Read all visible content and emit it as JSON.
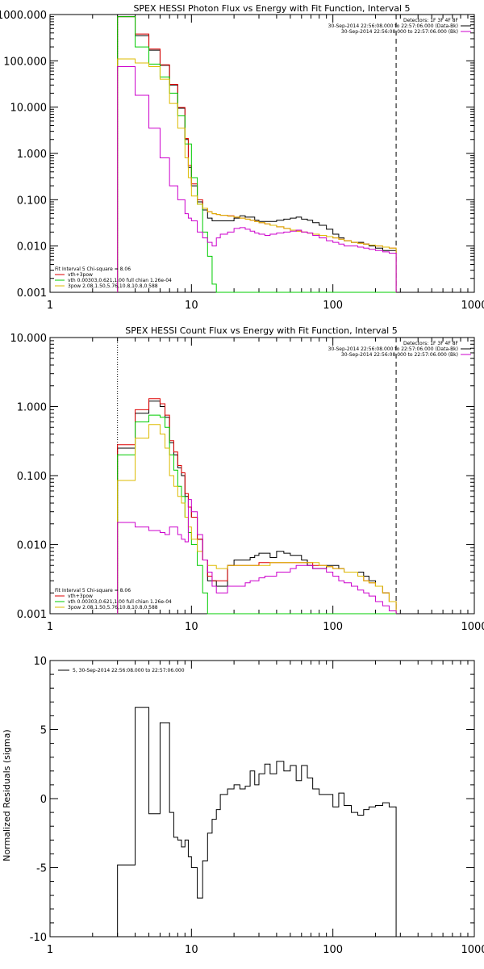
{
  "chart_data": [
    {
      "type": "line",
      "title": "SPEX HESSI Photon Flux vs Energy with Fit Function, Interval 5",
      "xlabel": "",
      "ylabel": "",
      "xscale": "log",
      "yscale": "log",
      "xlim": [
        1,
        1000
      ],
      "ylim": [
        0.001,
        1000
      ],
      "x_ticks": [
        "1",
        "10",
        "100",
        "1000"
      ],
      "y_ticks": [
        "0.001",
        "0.010",
        "0.100",
        "1.000",
        "10.000",
        "100.000",
        "1000.000"
      ],
      "vlines": [
        {
          "x": 3.0,
          "style": "dotted"
        },
        {
          "x": 280,
          "style": "dashed"
        }
      ],
      "legend_top": [
        {
          "text": "Detectors: 1F 3F 4F 8F",
          "color": "#000000"
        },
        {
          "text": "30-Sep-2014 22:56:08.000 to 22:57:06.000 (Data-Bk)",
          "color": "#000000"
        },
        {
          "text": "30-Sep-2014 22:56:08.000 to 22:57:06.000 (Bk)",
          "color": "#cc00cc"
        }
      ],
      "legend_bottom": [
        {
          "text": "Fit Interval 5   Chi-square = 8.06",
          "color": "#000000"
        },
        {
          "text": "vth+3pow",
          "color": "#dd0000"
        },
        {
          "text": "vth 0.00303,0.621,1.00  full chian 1.26e-04",
          "color": "#00cc00"
        },
        {
          "text": "3pow 2.08,1.50,5.76,10.8,10.8,0.588",
          "color": "#ddbb00"
        }
      ],
      "edges": [
        3.0,
        3.5,
        4.0,
        4.5,
        5.0,
        5.5,
        6.0,
        6.5,
        7.0,
        7.5,
        8.0,
        8.5,
        9.0,
        9.5,
        10.0,
        11.0,
        12.0,
        13.0,
        14.0,
        15.0,
        16.0,
        18.0,
        20.0,
        22.0,
        24.0,
        26.0,
        28.0,
        30.0,
        33.0,
        36.0,
        40.0,
        45.0,
        50.0,
        55.0,
        60.0,
        66.0,
        72.0,
        80.0,
        90.0,
        100.0,
        110.0,
        120.0,
        135.0,
        150.0,
        165.0,
        180.0,
        200.0,
        225.0,
        250.0,
        280.0
      ],
      "series": [
        {
          "color": "#000000",
          "values": [
            900,
            900,
            350,
            350,
            170,
            170,
            80,
            80,
            30,
            30,
            9.5,
            9.5,
            2.0,
            0.5,
            0.2,
            0.09,
            0.06,
            0.04,
            0.035,
            0.035,
            0.035,
            0.035,
            0.04,
            0.045,
            0.042,
            0.042,
            0.036,
            0.034,
            0.034,
            0.034,
            0.036,
            0.038,
            0.04,
            0.042,
            0.038,
            0.036,
            0.032,
            0.028,
            0.023,
            0.018,
            0.015,
            0.013,
            0.012,
            0.012,
            0.011,
            0.01,
            0.009,
            0.008,
            0.008
          ]
        },
        {
          "color": "#dd0000",
          "values": [
            900,
            900,
            380,
            380,
            180,
            180,
            82,
            82,
            31,
            31,
            9.8,
            9.8,
            2.1,
            0.55,
            0.22,
            0.1,
            0.065,
            0.055,
            0.05,
            0.048,
            0.046,
            0.045,
            0.042,
            0.04,
            0.038,
            0.036,
            0.034,
            0.032,
            0.03,
            0.028,
            0.026,
            0.024,
            0.022,
            0.021,
            0.02,
            0.019,
            0.018,
            0.017,
            0.016,
            0.015,
            0.014,
            0.013,
            0.012,
            0.0115,
            0.011,
            0.0105,
            0.01,
            0.0095,
            0.009
          ]
        },
        {
          "color": "#00cc00",
          "values": [
            900,
            900,
            200,
            200,
            85,
            85,
            45,
            45,
            20,
            20,
            6.5,
            6.5,
            1.6,
            1.6,
            0.3,
            0.08,
            0.02,
            0.006,
            0.0015,
            0.001,
            0.001,
            0.001,
            0.001,
            0.001,
            0.001,
            0.001,
            0.001,
            0.001,
            0.001,
            0.001,
            0.001,
            0.001,
            0.001,
            0.001,
            0.001,
            0.001,
            0.001,
            0.001,
            0.001,
            0.001,
            0.001,
            0.001,
            0.001,
            0.001,
            0.001,
            0.001,
            0.001,
            0.001,
            0.001
          ]
        },
        {
          "color": "#ddbb00",
          "values": [
            110,
            110,
            90,
            90,
            75,
            75,
            40,
            40,
            12,
            12,
            3.5,
            3.5,
            0.8,
            0.3,
            0.12,
            0.08,
            0.065,
            0.055,
            0.05,
            0.048,
            0.046,
            0.044,
            0.042,
            0.04,
            0.038,
            0.036,
            0.034,
            0.032,
            0.03,
            0.028,
            0.026,
            0.024,
            0.022,
            0.021,
            0.02,
            0.019,
            0.018,
            0.017,
            0.016,
            0.015,
            0.014,
            0.013,
            0.012,
            0.0115,
            0.011,
            0.0105,
            0.01,
            0.0095,
            0.009
          ]
        },
        {
          "color": "#cc00cc",
          "values": [
            75,
            75,
            18,
            18,
            3.5,
            3.5,
            0.8,
            0.8,
            0.2,
            0.2,
            0.1,
            0.1,
            0.05,
            0.04,
            0.035,
            0.02,
            0.015,
            0.012,
            0.01,
            0.015,
            0.018,
            0.02,
            0.024,
            0.025,
            0.023,
            0.021,
            0.019,
            0.018,
            0.017,
            0.018,
            0.019,
            0.02,
            0.021,
            0.022,
            0.02,
            0.019,
            0.017,
            0.015,
            0.013,
            0.012,
            0.011,
            0.01,
            0.01,
            0.0095,
            0.009,
            0.0085,
            0.008,
            0.0075,
            0.007
          ]
        }
      ]
    },
    {
      "type": "line",
      "title": "SPEX HESSI Count Flux vs Energy with Fit Function, Interval 5",
      "xlabel": "",
      "ylabel": "",
      "xscale": "log",
      "yscale": "log",
      "xlim": [
        1,
        1000
      ],
      "ylim": [
        0.001,
        10
      ],
      "x_ticks": [
        "1",
        "10",
        "100",
        "1000"
      ],
      "y_ticks": [
        "0.001",
        "0.010",
        "0.100",
        "1.000",
        "10.000"
      ],
      "vlines": [
        {
          "x": 3.0,
          "style": "dotted"
        },
        {
          "x": 280,
          "style": "dashed"
        }
      ],
      "legend_top": [
        {
          "text": "Detectors: 1F 3F 4F 8F",
          "color": "#000000"
        },
        {
          "text": "30-Sep-2014 22:56:08.000 to 22:57:06.000 (Data-Bk)",
          "color": "#000000"
        },
        {
          "text": "30-Sep-2014 22:56:08.000 to 22:57:06.000 (Bk)",
          "color": "#cc00cc"
        }
      ],
      "legend_bottom": [
        {
          "text": "Fit Interval 5   Chi-square = 8.06",
          "color": "#000000"
        },
        {
          "text": "vth+3pow",
          "color": "#dd0000"
        },
        {
          "text": "vth 0.00303,0.621,1.00  full chian 1.26e-04",
          "color": "#00cc00"
        },
        {
          "text": "3pow 2.08,1.50,5.76,10.8,10.8,0.588",
          "color": "#ddbb00"
        }
      ],
      "edges": [
        3.0,
        3.5,
        4.0,
        4.5,
        5.0,
        5.5,
        6.0,
        6.5,
        7.0,
        7.5,
        8.0,
        8.5,
        9.0,
        9.5,
        10.0,
        11.0,
        12.0,
        13.0,
        14.0,
        15.0,
        16.0,
        18.0,
        20.0,
        22.0,
        24.0,
        26.0,
        28.0,
        30.0,
        33.0,
        36.0,
        40.0,
        45.0,
        50.0,
        55.0,
        60.0,
        66.0,
        72.0,
        80.0,
        90.0,
        100.0,
        110.0,
        120.0,
        135.0,
        150.0,
        165.0,
        180.0,
        200.0,
        225.0,
        250.0,
        280.0
      ],
      "series": [
        {
          "color": "#000000",
          "values": [
            0.25,
            0.25,
            0.8,
            0.8,
            1.2,
            1.2,
            1.0,
            0.7,
            0.3,
            0.2,
            0.13,
            0.1,
            0.05,
            0.035,
            0.025,
            0.012,
            0.006,
            0.003,
            0.003,
            0.0025,
            0.0025,
            0.005,
            0.006,
            0.006,
            0.006,
            0.0065,
            0.007,
            0.0075,
            0.0075,
            0.0065,
            0.008,
            0.0075,
            0.007,
            0.007,
            0.006,
            0.005,
            0.0045,
            0.0045,
            0.005,
            0.005,
            0.0045,
            0.004,
            0.004,
            0.004,
            0.0035,
            0.003,
            0.0025,
            0.002,
            0.0015
          ]
        },
        {
          "color": "#dd0000",
          "values": [
            0.28,
            0.28,
            0.9,
            0.9,
            1.3,
            1.3,
            1.1,
            0.75,
            0.32,
            0.22,
            0.14,
            0.11,
            0.055,
            0.035,
            0.025,
            0.012,
            0.006,
            0.0035,
            0.003,
            0.003,
            0.003,
            0.005,
            0.005,
            0.005,
            0.005,
            0.005,
            0.005,
            0.0055,
            0.0055,
            0.0055,
            0.0055,
            0.0055,
            0.0055,
            0.0055,
            0.0055,
            0.0055,
            0.005,
            0.005,
            0.0048,
            0.0045,
            0.0045,
            0.004,
            0.004,
            0.0035,
            0.003,
            0.0028,
            0.0025,
            0.002,
            0.0015
          ]
        },
        {
          "color": "#00cc00",
          "values": [
            0.2,
            0.2,
            0.6,
            0.6,
            0.75,
            0.75,
            0.7,
            0.5,
            0.2,
            0.12,
            0.07,
            0.05,
            0.025,
            0.015,
            0.01,
            0.005,
            0.002,
            0.001,
            0.001,
            0.001,
            0.001,
            0.001,
            0.001,
            0.001,
            0.001,
            0.001,
            0.001,
            0.001,
            0.001,
            0.001,
            0.001,
            0.001,
            0.001,
            0.001,
            0.001,
            0.001,
            0.001,
            0.001,
            0.001,
            0.001,
            0.001,
            0.001,
            0.001,
            0.001,
            0.001,
            0.001,
            0.001,
            0.001,
            0.001
          ]
        },
        {
          "color": "#ddbb00",
          "values": [
            0.085,
            0.085,
            0.35,
            0.35,
            0.55,
            0.55,
            0.4,
            0.25,
            0.1,
            0.07,
            0.05,
            0.04,
            0.025,
            0.018,
            0.012,
            0.008,
            0.006,
            0.005,
            0.005,
            0.0045,
            0.0045,
            0.005,
            0.005,
            0.005,
            0.005,
            0.005,
            0.005,
            0.005,
            0.005,
            0.0055,
            0.0055,
            0.0055,
            0.0055,
            0.0055,
            0.0055,
            0.0055,
            0.0055,
            0.005,
            0.0048,
            0.0045,
            0.0045,
            0.004,
            0.004,
            0.0035,
            0.003,
            0.0028,
            0.0025,
            0.002,
            0.0015
          ]
        },
        {
          "color": "#cc00cc",
          "values": [
            0.021,
            0.021,
            0.018,
            0.018,
            0.016,
            0.016,
            0.015,
            0.014,
            0.018,
            0.018,
            0.014,
            0.012,
            0.011,
            0.045,
            0.03,
            0.014,
            0.006,
            0.004,
            0.0025,
            0.002,
            0.002,
            0.0025,
            0.0025,
            0.0025,
            0.0028,
            0.003,
            0.003,
            0.0033,
            0.0035,
            0.0035,
            0.004,
            0.004,
            0.0045,
            0.005,
            0.005,
            0.005,
            0.0045,
            0.0045,
            0.004,
            0.0035,
            0.003,
            0.0028,
            0.0025,
            0.0022,
            0.002,
            0.0018,
            0.0015,
            0.0013,
            0.0011
          ]
        }
      ]
    },
    {
      "type": "line",
      "title": "",
      "xlabel": "",
      "ylabel": "Normalized Residuals (sigma)",
      "xscale": "log",
      "yscale": "linear",
      "xlim": [
        1,
        1000
      ],
      "ylim": [
        -10,
        10
      ],
      "x_ticks": [
        "1",
        "10",
        "100",
        "1000"
      ],
      "y_ticks": [
        "-10",
        "-5",
        "0",
        "5",
        "10"
      ],
      "legend": [
        {
          "text": "5, 30-Sep-2014 22:56:08.000 to 22:57:06.000",
          "color": "#000000"
        }
      ],
      "edges": [
        3.0,
        3.5,
        4.0,
        4.5,
        5.0,
        5.5,
        6.0,
        6.5,
        7.0,
        7.5,
        8.0,
        8.5,
        9.0,
        9.5,
        10.0,
        11.0,
        12.0,
        13.0,
        14.0,
        15.0,
        16.0,
        18.0,
        20.0,
        22.0,
        24.0,
        26.0,
        28.0,
        30.0,
        33.0,
        36.0,
        40.0,
        45.0,
        50.0,
        55.0,
        60.0,
        66.0,
        72.0,
        80.0,
        90.0,
        100.0,
        110.0,
        120.0,
        135.0,
        150.0,
        165.0,
        180.0,
        200.0,
        225.0,
        250.0,
        280.0
      ],
      "series": [
        {
          "color": "#000000",
          "values": [
            -4.8,
            -4.8,
            6.6,
            6.6,
            -1.1,
            -1.1,
            5.5,
            5.5,
            -1.0,
            -2.8,
            -3.0,
            -3.5,
            -3.0,
            -4.2,
            -5.0,
            -7.2,
            -4.5,
            -2.5,
            -1.5,
            -0.8,
            0.3,
            0.7,
            1.0,
            0.7,
            0.9,
            2.0,
            1.0,
            1.8,
            2.5,
            1.8,
            2.7,
            2.0,
            2.4,
            1.3,
            2.4,
            1.5,
            0.7,
            0.3,
            0.3,
            -0.6,
            0.4,
            -0.5,
            -1.0,
            -1.2,
            -0.8,
            -0.6,
            -0.5,
            -0.3,
            -0.6
          ]
        }
      ]
    }
  ]
}
